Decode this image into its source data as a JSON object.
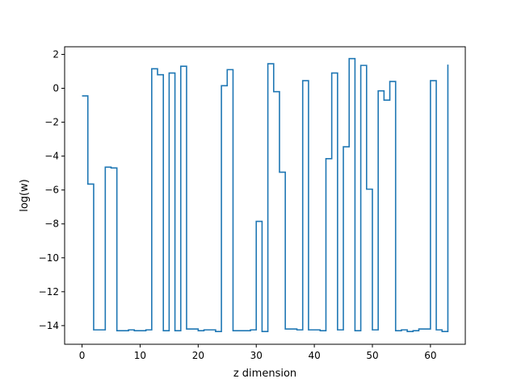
{
  "chart_data": {
    "type": "line",
    "drawstyle": "steps-post",
    "title": "",
    "xlabel": "z dimension",
    "ylabel": "log(w)",
    "xlim": [
      -3,
      66
    ],
    "ylim": [
      -15.1,
      2.45
    ],
    "xticks": [
      0,
      10,
      20,
      30,
      40,
      50,
      60
    ],
    "yticks": [
      2,
      0,
      -2,
      -4,
      -6,
      -8,
      -10,
      -12,
      -14
    ],
    "grid": false,
    "series_color": "#1f77b4",
    "series": [
      {
        "x": [
          0,
          1,
          2,
          3,
          4,
          5,
          6,
          7,
          8,
          9,
          10,
          11,
          12,
          13,
          14,
          15,
          16,
          17,
          18,
          19,
          20,
          21,
          22,
          23,
          24,
          25,
          26,
          27,
          28,
          29,
          30,
          31,
          32,
          33,
          34,
          35,
          36,
          37,
          38,
          39,
          40,
          41,
          42,
          43,
          44,
          45,
          46,
          47,
          48,
          49,
          50,
          51,
          52,
          53,
          54,
          55,
          56,
          57,
          58,
          59,
          60,
          61,
          62,
          63
        ],
        "values": [
          -0.45,
          -5.65,
          -14.25,
          -14.25,
          -4.65,
          -4.7,
          -14.3,
          -14.3,
          -14.25,
          -14.3,
          -14.3,
          -14.25,
          1.15,
          0.8,
          -14.3,
          0.9,
          -14.3,
          1.3,
          -14.2,
          -14.2,
          -14.3,
          -14.25,
          -14.25,
          -14.35,
          0.15,
          1.1,
          -14.3,
          -14.3,
          -14.3,
          -14.25,
          -7.85,
          -14.35,
          1.45,
          -0.2,
          -4.95,
          -14.2,
          -14.2,
          -14.25,
          0.45,
          -14.25,
          -14.25,
          -14.3,
          -4.15,
          0.9,
          -14.25,
          -3.45,
          1.75,
          -14.3,
          1.35,
          -5.95,
          -14.25,
          -0.15,
          -0.7,
          0.4,
          -14.3,
          -14.25,
          -14.35,
          -14.3,
          -14.2,
          -14.2,
          0.45,
          -14.25,
          -14.35,
          1.4
        ]
      }
    ]
  }
}
